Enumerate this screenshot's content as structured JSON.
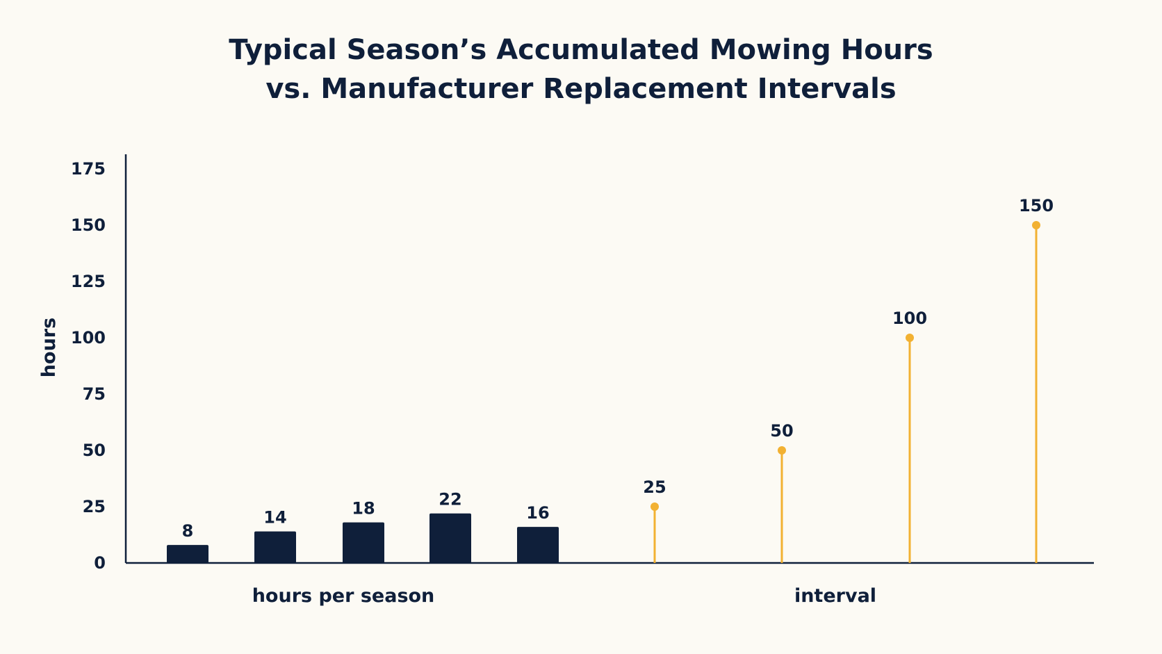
{
  "chart_data": {
    "type": "bar",
    "title": "Typical Season’s Accumulated Mowing Hours",
    "subtitle": "vs. Manufacturer Replacement Intervals",
    "ylabel": "hours",
    "ylim": [
      0,
      175
    ],
    "yticks": [
      0,
      25,
      50,
      75,
      100,
      125,
      150,
      175
    ],
    "grid": false,
    "groups": [
      {
        "name": "hours per season",
        "mark": "bar",
        "color": "#0f1f3a",
        "values": [
          8,
          14,
          18,
          22,
          16
        ],
        "value_labels": [
          "8",
          "14",
          "18",
          "22",
          "16"
        ]
      },
      {
        "name": "interval",
        "mark": "lollipop",
        "color": "#f2b132",
        "values": [
          25,
          50,
          100,
          150
        ],
        "value_labels": [
          "25",
          "50",
          "100",
          "150"
        ]
      }
    ]
  }
}
